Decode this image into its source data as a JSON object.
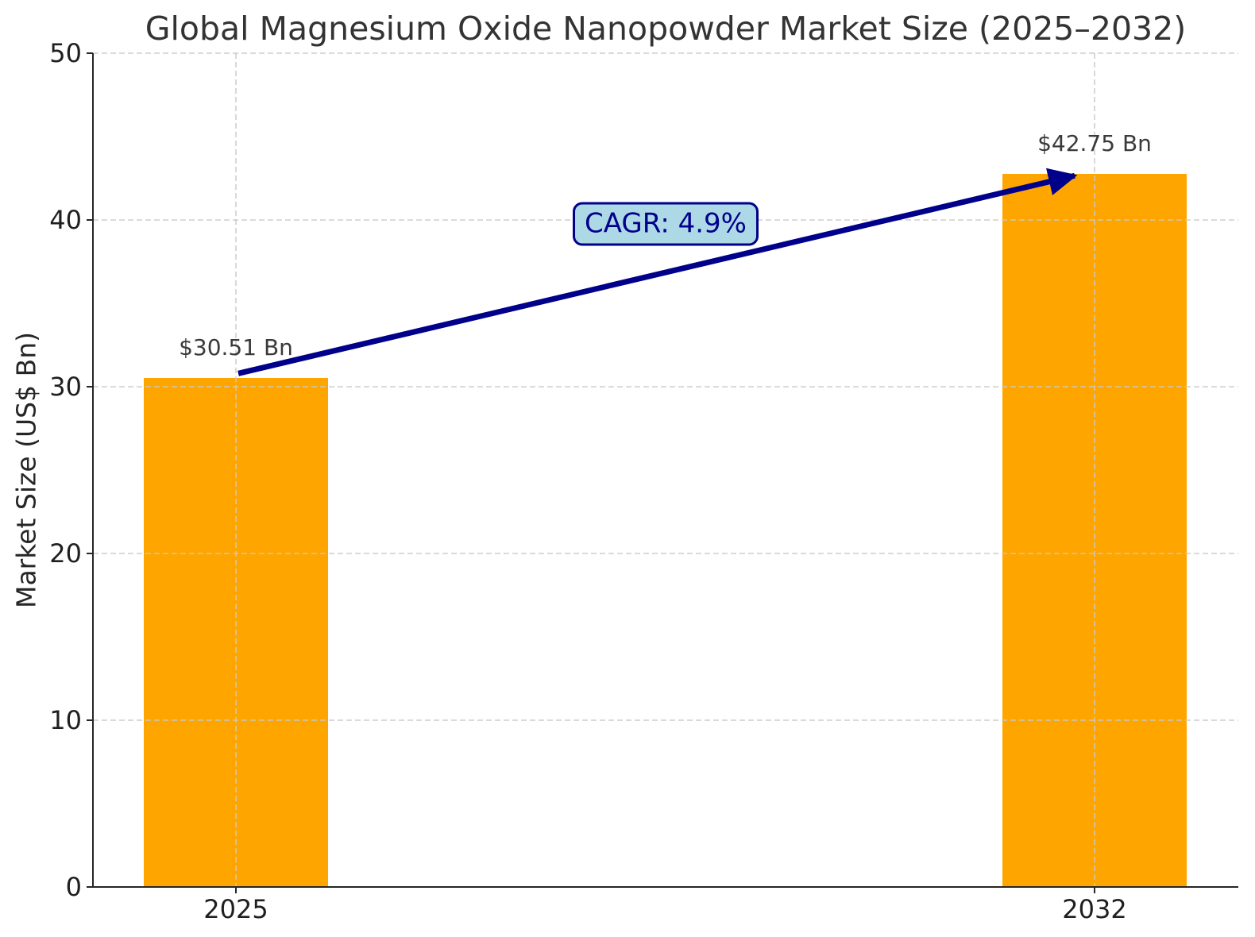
{
  "chart_data": {
    "type": "bar",
    "title": "Global Magnesium Oxide Nanopowder Market Size (2025–2032)",
    "xlabel": "",
    "ylabel": "Market Size (US$ Bn)",
    "categories": [
      "2025",
      "2032"
    ],
    "values": [
      30.51,
      42.75
    ],
    "bar_value_labels": [
      "$30.51 Bn",
      "$42.75 Bn"
    ],
    "ylim": [
      0,
      50
    ],
    "yticks": [
      0,
      10,
      20,
      30,
      40,
      50
    ],
    "grid": {
      "style": "dashed",
      "axes": "both",
      "color": "#c9c9c9"
    },
    "legend": "none",
    "bar_color": "#FFA500",
    "annotation": {
      "label": "CAGR: 4.9%",
      "text_color": "#00008B",
      "fill_color": "#ADD8E6",
      "border_color": "#00008B"
    },
    "arrow": {
      "color": "#00008B",
      "from_value": 30.51,
      "to_value": 42.75
    }
  }
}
